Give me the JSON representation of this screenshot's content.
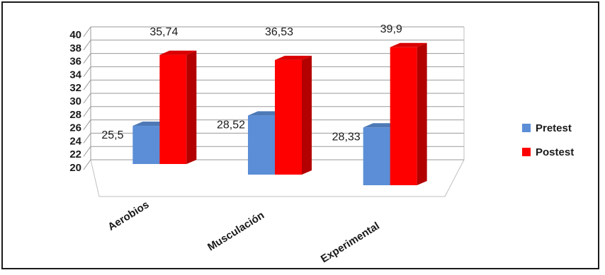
{
  "chart_data": {
    "type": "bar",
    "title": "",
    "xlabel": "",
    "ylabel": "",
    "ylim": [
      20,
      40
    ],
    "yticks": [
      20,
      22,
      24,
      26,
      28,
      30,
      32,
      34,
      36,
      38,
      40
    ],
    "categories": [
      "Aerobios",
      "Musculación",
      "Experimental"
    ],
    "series": [
      {
        "name": "Pretest",
        "values": [
          25.5,
          28.52,
          28.33
        ],
        "labels": [
          "25,5",
          "28,52",
          "28,33"
        ],
        "color": "#5b8ed6"
      },
      {
        "name": "Postest",
        "values": [
          35.74,
          36.53,
          39.9
        ],
        "labels": [
          "35,74",
          "36,53",
          "39,9"
        ],
        "color": "#ff0000"
      }
    ],
    "grid": true,
    "legend_position": "right",
    "style": "3d-clustered-column"
  }
}
